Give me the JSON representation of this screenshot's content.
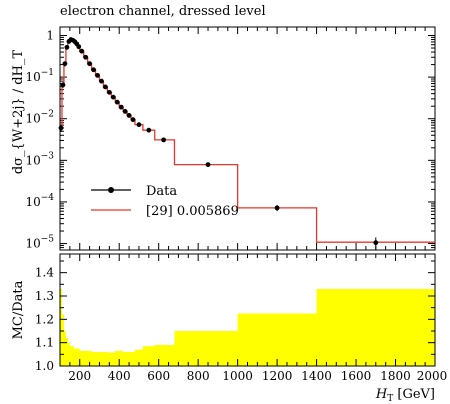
{
  "chart_data": [
    {
      "type": "line",
      "title": "electron channel, dressed level",
      "ylabel": "dσ_{W+2j} / dH_T",
      "xlabel": "",
      "yscale": "log",
      "xlim": [
        100,
        2000
      ],
      "ylim": [
        7e-06,
        1.6
      ],
      "y_ticks": [
        {
          "value": 1,
          "label": "1"
        },
        {
          "value": 0.1,
          "label": "10",
          "exp": "−1"
        },
        {
          "value": 0.01,
          "label": "10",
          "exp": "−2"
        },
        {
          "value": 0.001,
          "label": "10",
          "exp": "−3"
        },
        {
          "value": 0.0001,
          "label": "10",
          "exp": "−4"
        },
        {
          "value": 1e-05,
          "label": "10",
          "exp": "−5"
        }
      ],
      "legend": {
        "placement": "lower-left",
        "entries": [
          "Data",
          "[29] 0.005869"
        ]
      },
      "series": [
        {
          "name": "Data",
          "color": "#000000",
          "points": [
            {
              "x": 105,
              "y": 0.006,
              "err": 0.0012
            },
            {
              "x": 115,
              "y": 0.065,
              "err": 0.01
            },
            {
              "x": 125,
              "y": 0.21,
              "err": 0.03
            },
            {
              "x": 135,
              "y": 0.52,
              "err": 0.05
            },
            {
              "x": 145,
              "y": 0.72,
              "err": 0.04
            },
            {
              "x": 155,
              "y": 0.8,
              "err": 0.03
            },
            {
              "x": 165,
              "y": 0.77,
              "err": 0.03
            },
            {
              "x": 175,
              "y": 0.71,
              "err": 0.03
            },
            {
              "x": 185,
              "y": 0.63,
              "err": 0.02
            },
            {
              "x": 195,
              "y": 0.54,
              "err": 0.02
            },
            {
              "x": 210,
              "y": 0.42,
              "err": 0.015
            },
            {
              "x": 230,
              "y": 0.3,
              "err": 0.01
            },
            {
              "x": 250,
              "y": 0.21,
              "err": 0.008
            },
            {
              "x": 270,
              "y": 0.15,
              "err": 0.006
            },
            {
              "x": 290,
              "y": 0.11,
              "err": 0.004
            },
            {
              "x": 310,
              "y": 0.08,
              "err": 0.003
            },
            {
              "x": 330,
              "y": 0.058,
              "err": 0.002
            },
            {
              "x": 350,
              "y": 0.043,
              "err": 0.0015
            },
            {
              "x": 370,
              "y": 0.033,
              "err": 0.0012
            },
            {
              "x": 390,
              "y": 0.025,
              "err": 0.001
            },
            {
              "x": 410,
              "y": 0.019,
              "err": 0.0008
            },
            {
              "x": 430,
              "y": 0.015,
              "err": 0.0006
            },
            {
              "x": 450,
              "y": 0.012,
              "err": 0.0005
            },
            {
              "x": 470,
              "y": 0.0095,
              "err": 0.0004
            },
            {
              "x": 500,
              "y": 0.0072,
              "err": 0.0003
            },
            {
              "x": 550,
              "y": 0.0053,
              "err": 0.0003
            },
            {
              "x": 625,
              "y": 0.0031,
              "err": 0.0002
            },
            {
              "x": 850,
              "y": 0.00079,
              "err": 5e-05
            },
            {
              "x": 1200,
              "y": 7.2e-05,
              "err": 1.2e-05
            },
            {
              "x": 1700,
              "y": 1.05e-05,
              "err": 3.5e-06
            }
          ]
        },
        {
          "name": "[29] 0.005869",
          "color": "#e8372a",
          "bins": [
            {
              "lo": 100,
              "hi": 110,
              "y": 0.006
            },
            {
              "lo": 110,
              "hi": 120,
              "y": 0.065
            },
            {
              "lo": 120,
              "hi": 130,
              "y": 0.21
            },
            {
              "lo": 130,
              "hi": 140,
              "y": 0.52
            },
            {
              "lo": 140,
              "hi": 150,
              "y": 0.72
            },
            {
              "lo": 150,
              "hi": 160,
              "y": 0.8
            },
            {
              "lo": 160,
              "hi": 170,
              "y": 0.77
            },
            {
              "lo": 170,
              "hi": 180,
              "y": 0.71
            },
            {
              "lo": 180,
              "hi": 190,
              "y": 0.63
            },
            {
              "lo": 190,
              "hi": 200,
              "y": 0.54
            },
            {
              "lo": 200,
              "hi": 220,
              "y": 0.42
            },
            {
              "lo": 220,
              "hi": 240,
              "y": 0.3
            },
            {
              "lo": 240,
              "hi": 260,
              "y": 0.21
            },
            {
              "lo": 260,
              "hi": 280,
              "y": 0.15
            },
            {
              "lo": 280,
              "hi": 300,
              "y": 0.11
            },
            {
              "lo": 300,
              "hi": 320,
              "y": 0.08
            },
            {
              "lo": 320,
              "hi": 340,
              "y": 0.058
            },
            {
              "lo": 340,
              "hi": 360,
              "y": 0.043
            },
            {
              "lo": 360,
              "hi": 380,
              "y": 0.033
            },
            {
              "lo": 380,
              "hi": 400,
              "y": 0.025
            },
            {
              "lo": 400,
              "hi": 420,
              "y": 0.019
            },
            {
              "lo": 420,
              "hi": 440,
              "y": 0.015
            },
            {
              "lo": 440,
              "hi": 460,
              "y": 0.012
            },
            {
              "lo": 460,
              "hi": 480,
              "y": 0.0095
            },
            {
              "lo": 480,
              "hi": 520,
              "y": 0.0072
            },
            {
              "lo": 520,
              "hi": 580,
              "y": 0.0053
            },
            {
              "lo": 580,
              "hi": 680,
              "y": 0.0031
            },
            {
              "lo": 680,
              "hi": 1000,
              "y": 0.00079
            },
            {
              "lo": 1000,
              "hi": 1400,
              "y": 7.2e-05
            },
            {
              "lo": 1400,
              "hi": 2000,
              "y": 1.08e-05
            }
          ]
        }
      ]
    },
    {
      "type": "area",
      "title": "",
      "ylabel": "MC/Data",
      "xlabel": "H_T [GeV]",
      "xlim": [
        100,
        2000
      ],
      "ylim": [
        1.0,
        1.48
      ],
      "x_ticks": [
        200,
        400,
        600,
        800,
        1000,
        1200,
        1400,
        1600,
        1800,
        2000
      ],
      "y_ticks": [
        "1.0",
        "1.1",
        "1.2",
        "1.3",
        "1.4"
      ],
      "band_color": "#ffff00",
      "band": [
        {
          "lo": 100,
          "hi": 110,
          "y": 1.33
        },
        {
          "lo": 110,
          "hi": 120,
          "y": 1.22
        },
        {
          "lo": 120,
          "hi": 130,
          "y": 1.15
        },
        {
          "lo": 130,
          "hi": 140,
          "y": 1.12
        },
        {
          "lo": 140,
          "hi": 150,
          "y": 1.1
        },
        {
          "lo": 150,
          "hi": 170,
          "y": 1.085
        },
        {
          "lo": 170,
          "hi": 200,
          "y": 1.075
        },
        {
          "lo": 200,
          "hi": 260,
          "y": 1.065
        },
        {
          "lo": 260,
          "hi": 340,
          "y": 1.06
        },
        {
          "lo": 340,
          "hi": 380,
          "y": 1.058
        },
        {
          "lo": 380,
          "hi": 420,
          "y": 1.065
        },
        {
          "lo": 420,
          "hi": 480,
          "y": 1.06
        },
        {
          "lo": 480,
          "hi": 520,
          "y": 1.07
        },
        {
          "lo": 520,
          "hi": 580,
          "y": 1.085
        },
        {
          "lo": 580,
          "hi": 680,
          "y": 1.09
        },
        {
          "lo": 680,
          "hi": 1000,
          "y": 1.15
        },
        {
          "lo": 1000,
          "hi": 1400,
          "y": 1.225
        },
        {
          "lo": 1400,
          "hi": 2000,
          "y": 1.33
        }
      ]
    }
  ]
}
